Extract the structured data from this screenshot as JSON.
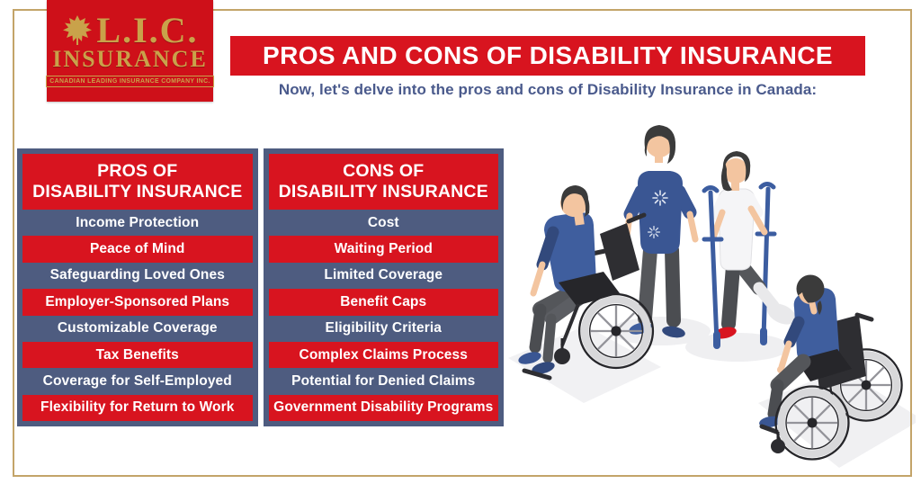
{
  "colors": {
    "brand-red": "#d8141f",
    "logo-red": "#ce1019",
    "slate-blue": "#4e5c80",
    "subtitle-blue": "#4a5a8c",
    "gold": "#c9a24a",
    "frame-gold": "#c3a469"
  },
  "logo": {
    "brand": "L.I.C.",
    "brand_sub": "INSURANCE",
    "tagline": "CANADIAN LEADING INSURANCE COMPANY INC.",
    "icon": "maple-leaf-icon"
  },
  "header": {
    "title": "PROS AND CONS OF DISABILITY INSURANCE",
    "subtitle": "Now, let's delve into the pros and cons of Disability Insurance in Canada:"
  },
  "table": {
    "columns": [
      {
        "header_line1": "PROS OF",
        "header_line2": "DISABILITY INSURANCE",
        "rows": [
          "Income Protection",
          "Peace of Mind",
          "Safeguarding Loved Ones",
          "Employer-Sponsored Plans",
          "Customizable Coverage",
          "Tax Benefits",
          "Coverage for Self-Employed",
          "Flexibility for Return to Work"
        ]
      },
      {
        "header_line1": "CONS OF",
        "header_line2": "DISABILITY INSURANCE",
        "rows": [
          "Cost",
          "Waiting Period",
          "Limited Coverage",
          "Benefit Caps",
          "Eligibility Criteria",
          "Complex Claims Process",
          "Potential for Denied Claims",
          "Government Disability Programs"
        ]
      }
    ]
  },
  "illustration": {
    "description": "Isometric illustration of four people: a man in a wheelchair, a standing woman companion, a person walking with crutches and a leg cast, and a woman in a wheelchair seen from behind",
    "figures": [
      "wheelchair-man",
      "standing-woman",
      "crutches-person-with-cast",
      "wheelchair-woman"
    ],
    "colors": {
      "skin": "#f3c5a0",
      "hair": "#3b3b3b",
      "shirt_blue": "#3f5e9e",
      "shirt_white": "#f5f5f7",
      "pants": "#55575b",
      "cast": "#e9e9eb",
      "shoe_red": "#d8141f",
      "crutch_blue": "#3c5da0",
      "wheelchair_frame": "#26262a",
      "wheel_rim": "#d8d8da",
      "floor_shadow": "#efeff1"
    }
  }
}
